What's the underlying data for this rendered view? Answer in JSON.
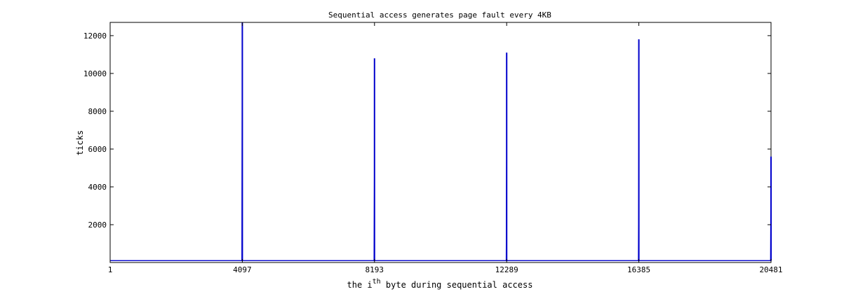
{
  "chart_data": {
    "type": "line",
    "title": "Sequential access generates page fault every 4KB",
    "xlabel": {
      "prefix": "the i",
      "superscript": "th",
      "suffix": " byte during sequential access"
    },
    "ylabel": "ticks",
    "xlim": [
      1,
      20481
    ],
    "ylim": [
      0,
      12700
    ],
    "xticks": [
      1,
      4097,
      8193,
      12289,
      16385,
      20481
    ],
    "yticks": [
      2000,
      4000,
      6000,
      8000,
      10000,
      12000
    ],
    "grid": false,
    "series": [
      {
        "color": "#0000cc",
        "baseline": 100,
        "spikes": [
          {
            "x": 4097,
            "values": [
              12700,
              12700
            ]
          },
          {
            "x": 8193,
            "values": [
              5400,
              10800
            ]
          },
          {
            "x": 12289,
            "values": [
              5600,
              11100
            ]
          },
          {
            "x": 16385,
            "values": [
              5900,
              11800
            ]
          },
          {
            "x": 20481,
            "values": [
              5600
            ]
          }
        ]
      }
    ]
  }
}
